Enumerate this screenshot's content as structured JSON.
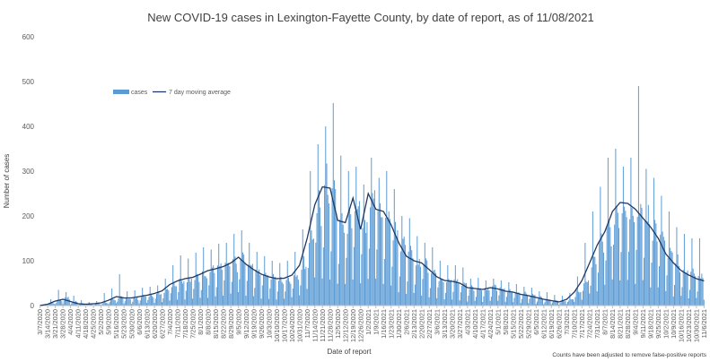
{
  "chart_data": {
    "type": "bar",
    "title": "New COVID-19 cases in Lexington-Fayette County, by date of report, as of 11/08/2021",
    "xlabel": "Date of report",
    "ylabel": "Number of cases",
    "ylim": [
      0,
      600
    ],
    "yticks": [
      0,
      100,
      200,
      300,
      400,
      500,
      600
    ],
    "grid": false,
    "legend_position": "upper-left inside plot",
    "footnote": "Counts have been adjusted to remove false-positive reports",
    "colors": {
      "bars": "#5b9bd5",
      "moving_average": "#1f3864"
    },
    "x_start_date": "3/7/2020",
    "x_end_date": "11/6/2021",
    "x_tick_labels": [
      "3/7/2020",
      "3/14/2020",
      "3/21/2020",
      "3/28/2020",
      "4/4/2020",
      "4/11/2020",
      "4/18/2020",
      "4/25/2020",
      "5/2/2020",
      "5/9/2020",
      "5/16/2020",
      "5/23/2020",
      "5/30/2020",
      "6/6/2020",
      "6/13/2020",
      "6/20/2020",
      "6/27/2020",
      "7/4/2020",
      "7/11/2020",
      "7/18/2020",
      "7/25/2020",
      "8/1/2020",
      "8/8/2020",
      "8/15/2020",
      "8/22/2020",
      "8/29/2020",
      "9/5/2020",
      "9/12/2020",
      "9/19/2020",
      "9/26/2020",
      "10/3/2020",
      "10/10/2020",
      "10/17/2020",
      "10/24/2020",
      "10/31/2020",
      "11/7/2020",
      "11/14/2020",
      "11/21/2020",
      "11/28/2020",
      "12/5/2020",
      "12/12/2020",
      "12/19/2020",
      "12/26/2020",
      "1/2/2021",
      "1/9/2021",
      "1/16/2021",
      "1/23/2021",
      "1/30/2021",
      "2/6/2021",
      "2/13/2021",
      "2/20/2021",
      "2/27/2021",
      "3/6/2021",
      "3/13/2021",
      "3/20/2021",
      "3/27/2021",
      "4/3/2021",
      "4/10/2021",
      "4/17/2021",
      "4/24/2021",
      "5/1/2021",
      "5/8/2021",
      "5/15/2021",
      "5/22/2021",
      "5/29/2021",
      "6/5/2021",
      "6/12/2021",
      "6/19/2021",
      "6/26/2021",
      "7/3/2021",
      "7/10/2021",
      "7/17/2021",
      "7/24/2021",
      "7/31/2021",
      "8/7/2021",
      "8/14/2021",
      "8/21/2021",
      "8/28/2021",
      "9/4/2021",
      "9/11/2021",
      "9/18/2021",
      "9/25/2021",
      "10/2/2021",
      "10/9/2021",
      "10/16/2021",
      "10/23/2021",
      "10/30/2021",
      "11/6/2021"
    ],
    "series": [
      {
        "name": "cases",
        "kind": "bar",
        "weekly_mean_values": [
          0,
          5,
          12,
          17,
          9,
          4,
          3,
          4,
          6,
          14,
          18,
          16,
          16,
          20,
          23,
          26,
          34,
          50,
          58,
          62,
          63,
          72,
          80,
          84,
          90,
          95,
          105,
          90,
          80,
          72,
          65,
          60,
          62,
          70,
          95,
          160,
          225,
          265,
          245,
          190,
          190,
          230,
          185,
          250,
          220,
          205,
          180,
          135,
          115,
          100,
          95,
          80,
          65,
          58,
          55,
          50,
          40,
          40,
          38,
          42,
          38,
          32,
          30,
          26,
          24,
          18,
          15,
          12,
          10,
          14,
          32,
          55,
          95,
          140,
          170,
          215,
          235,
          230,
          220,
          200,
          175,
          150,
          115,
          95,
          80,
          72,
          65,
          60
        ],
        "weekly_max_values": [
          0,
          14,
          35,
          30,
          22,
          12,
          8,
          10,
          28,
          38,
          70,
          32,
          34,
          40,
          42,
          45,
          60,
          90,
          112,
          105,
          118,
          130,
          125,
          138,
          140,
          160,
          168,
          140,
          120,
          110,
          100,
          95,
          100,
          120,
          170,
          300,
          360,
          400,
          452,
          335,
          300,
          310,
          270,
          330,
          285,
          300,
          260,
          200,
          195,
          155,
          140,
          130,
          100,
          90,
          90,
          85,
          60,
          62,
          56,
          60,
          56,
          52,
          48,
          42,
          40,
          32,
          30,
          24,
          22,
          28,
          65,
          140,
          210,
          265,
          330,
          350,
          310,
          330,
          490,
          305,
          285,
          245,
          210,
          175,
          160,
          150,
          150,
          128
        ]
      },
      {
        "name": "7 day moving average",
        "kind": "line",
        "weekly_values": [
          0,
          3,
          10,
          14,
          9,
          4,
          3,
          4,
          6,
          12,
          20,
          17,
          17,
          20,
          23,
          27,
          33,
          47,
          55,
          60,
          63,
          70,
          78,
          82,
          87,
          95,
          108,
          92,
          80,
          70,
          64,
          60,
          61,
          68,
          90,
          150,
          225,
          265,
          262,
          190,
          185,
          240,
          170,
          250,
          215,
          210,
          180,
          140,
          110,
          100,
          95,
          80,
          64,
          56,
          54,
          50,
          40,
          38,
          36,
          40,
          37,
          32,
          30,
          25,
          22,
          18,
          14,
          11,
          8,
          14,
          30,
          56,
          95,
          135,
          165,
          210,
          230,
          228,
          215,
          195,
          175,
          150,
          115,
          95,
          78,
          68,
          60,
          55
        ]
      }
    ]
  }
}
